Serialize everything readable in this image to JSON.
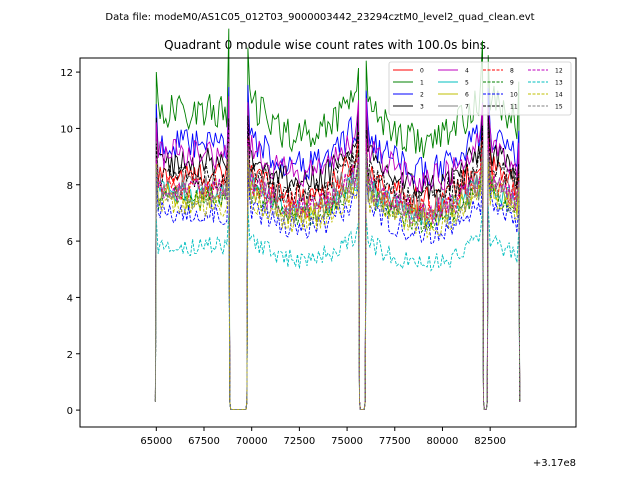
{
  "chart_data": {
    "type": "line",
    "suptitle": "Data file: modeM0/AS1C05_012T03_9000003442_23294cztM0_level2_quad_clean.evt",
    "title": "Quadrant 0 module wise count rates with 100.0s bins.",
    "xlabel": "",
    "ylabel": "",
    "x_offset_label": "+3.17e8",
    "xlim": [
      61000,
      87000
    ],
    "ylim": [
      -0.6,
      12.5
    ],
    "x_ticks": [
      65000,
      67500,
      70000,
      72500,
      75000,
      77500,
      80000,
      82500
    ],
    "x_tick_labels": [
      "65000",
      "67500",
      "70000",
      "72500",
      "75000",
      "77500",
      "80000",
      "82500"
    ],
    "y_ticks": [
      0,
      2,
      4,
      6,
      8,
      10,
      12
    ],
    "y_tick_labels": [
      "0",
      "2",
      "4",
      "6",
      "8",
      "10",
      "12"
    ],
    "grid": false,
    "legend_position": "upper-right",
    "segments": [
      [
        65000,
        68800
      ],
      [
        69800,
        75600
      ],
      [
        76000,
        82100
      ],
      [
        82400,
        84000
      ]
    ],
    "gaps": [
      [
        68800,
        69800
      ],
      [
        75600,
        76000
      ],
      [
        82100,
        82400
      ]
    ],
    "series": [
      {
        "name": "0",
        "color": "#ff0000",
        "dash": "solid",
        "level": 8.3
      },
      {
        "name": "1",
        "color": "#008000",
        "dash": "solid",
        "level": 10.6
      },
      {
        "name": "2",
        "color": "#0000ff",
        "dash": "solid",
        "level": 9.4
      },
      {
        "name": "3",
        "color": "#000000",
        "dash": "solid",
        "level": 8.8
      },
      {
        "name": "4",
        "color": "#bf00bf",
        "dash": "solid",
        "level": 9.1
      },
      {
        "name": "5",
        "color": "#00bfbf",
        "dash": "solid",
        "level": 7.7
      },
      {
        "name": "6",
        "color": "#bfbf00",
        "dash": "solid",
        "level": 7.6
      },
      {
        "name": "7",
        "color": "#808080",
        "dash": "solid",
        "level": 8.0
      },
      {
        "name": "8",
        "color": "#ff0000",
        "dash": "dashed",
        "level": 7.9
      },
      {
        "name": "9",
        "color": "#008000",
        "dash": "dashed",
        "level": 7.5
      },
      {
        "name": "10",
        "color": "#0000ff",
        "dash": "dashed",
        "level": 7.0
      },
      {
        "name": "11",
        "color": "#000000",
        "dash": "dashed",
        "level": 8.4
      },
      {
        "name": "12",
        "color": "#bf00bf",
        "dash": "dashed",
        "level": 7.8
      },
      {
        "name": "13",
        "color": "#00bfbf",
        "dash": "dashed",
        "level": 5.8
      },
      {
        "name": "14",
        "color": "#bfbf00",
        "dash": "dashed",
        "level": 7.3
      },
      {
        "name": "15",
        "color": "#808080",
        "dash": "dashed",
        "level": 7.6
      }
    ]
  }
}
